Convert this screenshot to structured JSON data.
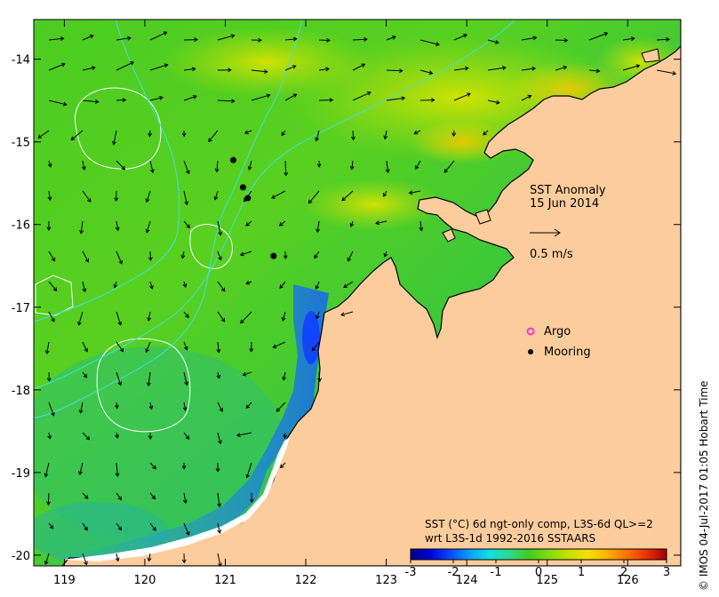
{
  "map": {
    "title_line1": "SST Anomaly",
    "title_line2": "15 Jun 2014",
    "vector_scale_label": "0.5 m/s",
    "legend": {
      "argo_label": "Argo",
      "mooring_label": "Mooring",
      "argo_color": "#ff33cc",
      "mooring_color": "#000000"
    },
    "colorbar": {
      "caption_line1": "SST (°C) 6d ngt-only comp, L3S-6d QL>=2",
      "caption_line2": "wrt L3S-1d 1992-2016 SSTAARS",
      "ticks": [
        "-3",
        "-2",
        "-1",
        "0",
        "1",
        "2",
        "3"
      ],
      "colors": [
        "#00008a",
        "#0000d8",
        "#0a48ff",
        "#0aa0ff",
        "#10e0e0",
        "#30d890",
        "#40cc20",
        "#80dc10",
        "#c8e000",
        "#f4e000",
        "#ffb000",
        "#ff7000",
        "#e83000",
        "#a00000"
      ]
    },
    "credit": "© IMOS 04-Jul-2017 01:05 Hobart Time",
    "x_axis": {
      "ticks": [
        "119",
        "120",
        "121",
        "122",
        "123",
        "124",
        "125",
        "126"
      ]
    },
    "y_axis": {
      "ticks": [
        "-14",
        "-15",
        "-16",
        "-17",
        "-18",
        "-19",
        "-20"
      ]
    },
    "lon_range": [
      118.62,
      126.66
    ],
    "lat_range": [
      -20.13,
      -13.52
    ],
    "colors": {
      "land": "#fccc9c",
      "ocean_green": "#40cc20",
      "ocean_yellow": "#b8e010",
      "coastal_blue": "#1890ff",
      "contour_white": "#ffffff",
      "isobath_cyan": "#40e0e0"
    },
    "moorings": [
      {
        "lon": 121.1,
        "lat": -15.22
      },
      {
        "lon": 121.22,
        "lat": -15.55
      },
      {
        "lon": 121.28,
        "lat": -15.68
      },
      {
        "lon": 121.6,
        "lat": -16.38
      }
    ]
  }
}
